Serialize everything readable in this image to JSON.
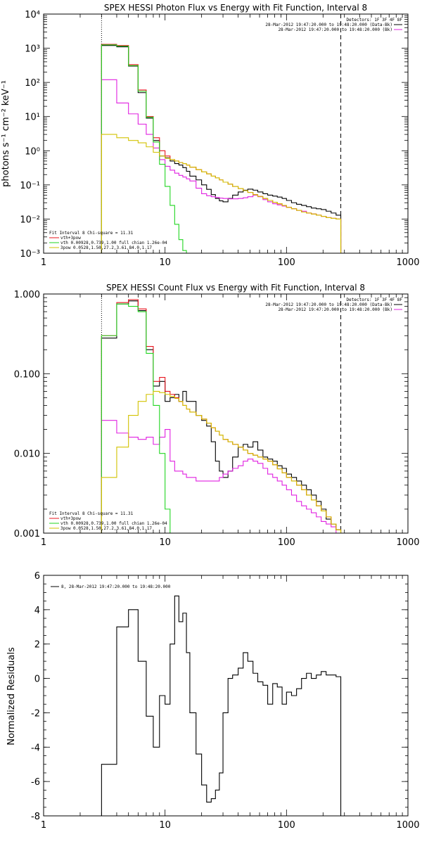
{
  "colors": {
    "black": "#000000",
    "red": "#e8141e",
    "green": "#22d622",
    "magenta": "#e020e0",
    "yellow": "#d2c200"
  },
  "chart_data": [
    {
      "type": "line",
      "id": "photon",
      "title": "SPEX HESSI Photon Flux vs Energy with Fit Function, Interval 8",
      "xlabel": "",
      "ylabel": "photons s⁻¹ cm⁻² keV⁻¹",
      "xscale": "log",
      "yscale": "log",
      "xlim": [
        1,
        1000
      ],
      "ylim": [
        0.001,
        10000
      ],
      "xticks": [
        1,
        10,
        100,
        1000
      ],
      "xticklabels": [
        "1",
        "10",
        "100",
        "1000"
      ],
      "yticks": [
        0.001,
        0.01,
        0.1,
        1,
        10,
        100,
        1000,
        10000
      ],
      "yticklabels": [
        "10⁻³",
        "10⁻²",
        "10⁻¹",
        "10⁰",
        "10¹",
        "10²",
        "10³",
        "10⁴"
      ],
      "vlines": [
        {
          "x": 3,
          "style": "dotted"
        },
        {
          "x": 280,
          "style": "dashed"
        }
      ],
      "header": [
        "Detectors: 1F 3F 4F 8F",
        "28-Mar-2012 19:47:20.000 to 19:48:20.000 (Data-Bk)",
        "28-Mar-2012 19:47:20.000 to 19:48:20.000 (Bk)"
      ],
      "fit_lines": [
        "Fit Interval  8   Chi-square = 11.31",
        "vth+3pow",
        "vth 0.00928,0.739,1.00   full chian 1.26e-04",
        "3pow 0.0528,1.50,27.2,3.61,84.0,1.17"
      ],
      "energy_edges": [
        3,
        4,
        5,
        6,
        7,
        8,
        9,
        10,
        11,
        12,
        13,
        14,
        15,
        16,
        18,
        20,
        22,
        24,
        26,
        28,
        30,
        33,
        36,
        40,
        44,
        48,
        53,
        58,
        64,
        70,
        77,
        84,
        92,
        100,
        110,
        121,
        133,
        146,
        160,
        176,
        193,
        212,
        233,
        256,
        280
      ],
      "series": [
        {
          "name": "Data-Bk",
          "color": "black",
          "values": [
            1200,
            1100,
            300,
            50,
            9,
            2.0,
            0.7,
            0.62,
            0.5,
            0.42,
            0.38,
            0.32,
            0.25,
            0.18,
            0.14,
            0.1,
            0.074,
            0.052,
            0.04,
            0.034,
            0.032,
            0.04,
            0.05,
            0.062,
            0.07,
            0.075,
            0.07,
            0.062,
            0.055,
            0.05,
            0.047,
            0.044,
            0.04,
            0.035,
            0.03,
            0.027,
            0.025,
            0.023,
            0.021,
            0.02,
            0.019,
            0.017,
            0.015,
            0.013
          ]
        },
        {
          "name": "Bk",
          "color": "magenta",
          "values": [
            120,
            25,
            12,
            6,
            3,
            1.2,
            0.55,
            0.35,
            0.27,
            0.22,
            0.19,
            0.17,
            0.15,
            0.13,
            0.08,
            0.055,
            0.048,
            0.045,
            0.043,
            0.041,
            0.04,
            0.039,
            0.039,
            0.04,
            0.042,
            0.045,
            0.05,
            0.045,
            0.037,
            0.032,
            0.028,
            0.026,
            0.024,
            0.022,
            0.02,
            0.018,
            0.017,
            0.015,
            0.014,
            0.013,
            0.012,
            0.011,
            0.0105,
            0.01
          ]
        },
        {
          "name": "vth+3pow",
          "color": "red",
          "values": [
            1300,
            1200,
            330,
            60,
            10,
            2.4,
            1.0,
            0.7,
            0.55,
            0.5,
            0.45,
            0.42,
            0.38,
            0.33,
            0.28,
            0.24,
            0.21,
            0.18,
            0.16,
            0.14,
            0.12,
            0.105,
            0.09,
            0.078,
            0.068,
            0.06,
            0.052,
            0.046,
            0.04,
            0.035,
            0.031,
            0.028,
            0.025,
            0.022,
            0.02,
            0.018,
            0.016,
            0.015,
            0.014,
            0.013,
            0.012,
            0.011,
            0.0105,
            0.01
          ]
        },
        {
          "name": "vth",
          "color": "green",
          "values": [
            1250,
            1150,
            310,
            55,
            9.5,
            1.8,
            0.4,
            0.09,
            0.025,
            0.007,
            0.0025,
            0.0012
          ]
        },
        {
          "name": "3pow",
          "color": "yellow",
          "values": [
            3.0,
            2.4,
            2.0,
            1.7,
            1.3,
            0.9,
            0.7,
            0.6,
            0.55,
            0.5,
            0.45,
            0.42,
            0.38,
            0.33,
            0.28,
            0.24,
            0.21,
            0.18,
            0.16,
            0.14,
            0.12,
            0.105,
            0.09,
            0.078,
            0.068,
            0.06,
            0.052,
            0.046,
            0.04,
            0.035,
            0.031,
            0.028,
            0.025,
            0.022,
            0.02,
            0.018,
            0.016,
            0.015,
            0.014,
            0.013,
            0.012,
            0.011,
            0.0105,
            0.01
          ]
        }
      ]
    },
    {
      "type": "line",
      "id": "count",
      "title": "SPEX HESSI Count Flux vs Energy with Fit Function, Interval 8",
      "xlabel": "",
      "ylabel": "",
      "xscale": "log",
      "yscale": "log",
      "xlim": [
        1,
        1000
      ],
      "ylim": [
        0.001,
        1.0
      ],
      "xticks": [
        1,
        10,
        100,
        1000
      ],
      "xticklabels": [
        "1",
        "10",
        "100",
        "1000"
      ],
      "yticks": [
        0.001,
        0.01,
        0.1,
        1.0
      ],
      "yticklabels": [
        "0.001",
        "0.010",
        "0.100",
        "1.000"
      ],
      "vlines": [
        {
          "x": 3,
          "style": "dotted"
        },
        {
          "x": 280,
          "style": "dashed"
        }
      ],
      "header": [
        "Detectors: 1F 3F 4F 8F",
        "28-Mar-2012 19:47:20.000 to 19:48:20.000 (Data-Bk)",
        "28-Mar-2012 19:47:20.000 to 19:48:20.000 (Bk)"
      ],
      "fit_lines": [
        "Fit Interval  8   Chi-square = 11.31",
        "vth+3pow",
        "vth 0.00928,0.739,1.00   full chian 1.26e-04",
        "3pow 0.0528,1.50,27.2,3.61,84.0,1.17"
      ],
      "energy_edges": [
        3,
        4,
        5,
        6,
        7,
        8,
        9,
        10,
        11,
        12,
        13,
        14,
        15,
        16,
        18,
        20,
        22,
        24,
        26,
        28,
        30,
        33,
        36,
        40,
        44,
        48,
        53,
        58,
        64,
        70,
        77,
        84,
        92,
        100,
        110,
        121,
        133,
        146,
        160,
        176,
        193,
        212,
        233,
        256,
        280
      ],
      "series": [
        {
          "name": "Data-Bk",
          "color": "black",
          "values": [
            0.28,
            0.75,
            0.82,
            0.62,
            0.2,
            0.07,
            0.08,
            0.045,
            0.05,
            0.055,
            0.045,
            0.06,
            0.045,
            0.045,
            0.03,
            0.026,
            0.022,
            0.014,
            0.008,
            0.006,
            0.005,
            0.006,
            0.009,
            0.012,
            0.013,
            0.012,
            0.014,
            0.011,
            0.009,
            0.0085,
            0.008,
            0.007,
            0.0065,
            0.0055,
            0.005,
            0.0045,
            0.004,
            0.0035,
            0.003,
            0.0025,
            0.002,
            0.0015,
            0.0013,
            0.0011
          ]
        },
        {
          "name": "Bk",
          "color": "magenta",
          "values": [
            0.026,
            0.018,
            0.016,
            0.015,
            0.016,
            0.013,
            0.016,
            0.02,
            0.008,
            0.006,
            0.006,
            0.0055,
            0.005,
            0.005,
            0.0045,
            0.0045,
            0.0045,
            0.0045,
            0.0045,
            0.005,
            0.0055,
            0.006,
            0.0065,
            0.007,
            0.008,
            0.0085,
            0.008,
            0.0075,
            0.0065,
            0.0055,
            0.005,
            0.0045,
            0.004,
            0.0035,
            0.003,
            0.0025,
            0.0022,
            0.002,
            0.0018,
            0.0016,
            0.0014,
            0.0013,
            0.0012,
            0.001
          ]
        },
        {
          "name": "vth+3pow",
          "color": "red",
          "values": [
            0.3,
            0.78,
            0.85,
            0.65,
            0.22,
            0.08,
            0.09,
            0.06,
            0.055,
            0.05,
            0.045,
            0.04,
            0.036,
            0.033,
            0.03,
            0.027,
            0.024,
            0.021,
            0.019,
            0.017,
            0.015,
            0.014,
            0.013,
            0.012,
            0.011,
            0.01,
            0.0095,
            0.009,
            0.0085,
            0.008,
            0.0072,
            0.0064,
            0.0057,
            0.005,
            0.0045,
            0.004,
            0.0035,
            0.003,
            0.0026,
            0.0022,
            0.0019,
            0.0016,
            0.0013,
            0.0011
          ]
        },
        {
          "name": "vth",
          "color": "green",
          "values": [
            0.3,
            0.75,
            0.7,
            0.6,
            0.18,
            0.04,
            0.01,
            0.002
          ]
        },
        {
          "name": "3pow",
          "color": "yellow",
          "values": [
            0.005,
            0.012,
            0.03,
            0.045,
            0.055,
            0.06,
            0.058,
            0.055,
            0.052,
            0.049,
            0.045,
            0.04,
            0.036,
            0.033,
            0.03,
            0.027,
            0.024,
            0.021,
            0.019,
            0.017,
            0.015,
            0.014,
            0.013,
            0.012,
            0.011,
            0.01,
            0.0095,
            0.009,
            0.0085,
            0.008,
            0.0072,
            0.0064,
            0.0057,
            0.005,
            0.0045,
            0.004,
            0.0035,
            0.003,
            0.0026,
            0.0022,
            0.0019,
            0.0016,
            0.0013,
            0.0011
          ]
        }
      ]
    },
    {
      "type": "line",
      "id": "resid",
      "title": "",
      "xlabel": "",
      "ylabel": "Normalized Residuals",
      "xscale": "log",
      "yscale": "linear",
      "xlim": [
        1,
        1000
      ],
      "ylim": [
        -8,
        6
      ],
      "xticks": [
        1,
        10,
        100,
        1000
      ],
      "xticklabels": [
        "1",
        "10",
        "100",
        "1000"
      ],
      "yticks": [
        -8,
        -6,
        -4,
        -2,
        0,
        2,
        4,
        6
      ],
      "yticklabels": [
        "-8",
        "-6",
        "-4",
        "-2",
        "0",
        "2",
        "4",
        "6"
      ],
      "legend": "8, 28-Mar-2012 19:47:20.000 to 19:48:20.000",
      "legend_position": "top-left",
      "energy_edges": [
        3,
        4,
        5,
        6,
        7,
        8,
        9,
        10,
        11,
        12,
        13,
        14,
        15,
        16,
        18,
        20,
        22,
        24,
        26,
        28,
        30,
        33,
        36,
        40,
        44,
        48,
        53,
        58,
        64,
        70,
        77,
        84,
        92,
        100,
        110,
        121,
        133,
        146,
        160,
        176,
        193,
        212,
        233,
        256,
        280
      ],
      "series": [
        {
          "name": "8, 28-Mar-2012 19:47:20.000 to 19:48:20.000",
          "color": "black",
          "values": [
            -5.0,
            3.0,
            4.0,
            1.0,
            -2.2,
            -4.0,
            -1.0,
            -1.5,
            2.0,
            4.8,
            3.3,
            3.8,
            1.5,
            -2.0,
            -4.4,
            -6.2,
            -7.2,
            -7.0,
            -6.5,
            -5.5,
            -2.0,
            0.0,
            0.2,
            0.6,
            1.5,
            1.0,
            0.3,
            -0.2,
            -0.4,
            -1.5,
            -0.3,
            -0.5,
            -1.5,
            -0.8,
            -1.0,
            -0.6,
            0.0,
            0.3,
            0.0,
            0.2,
            0.4,
            0.2,
            0.2,
            0.1
          ]
        }
      ]
    }
  ]
}
